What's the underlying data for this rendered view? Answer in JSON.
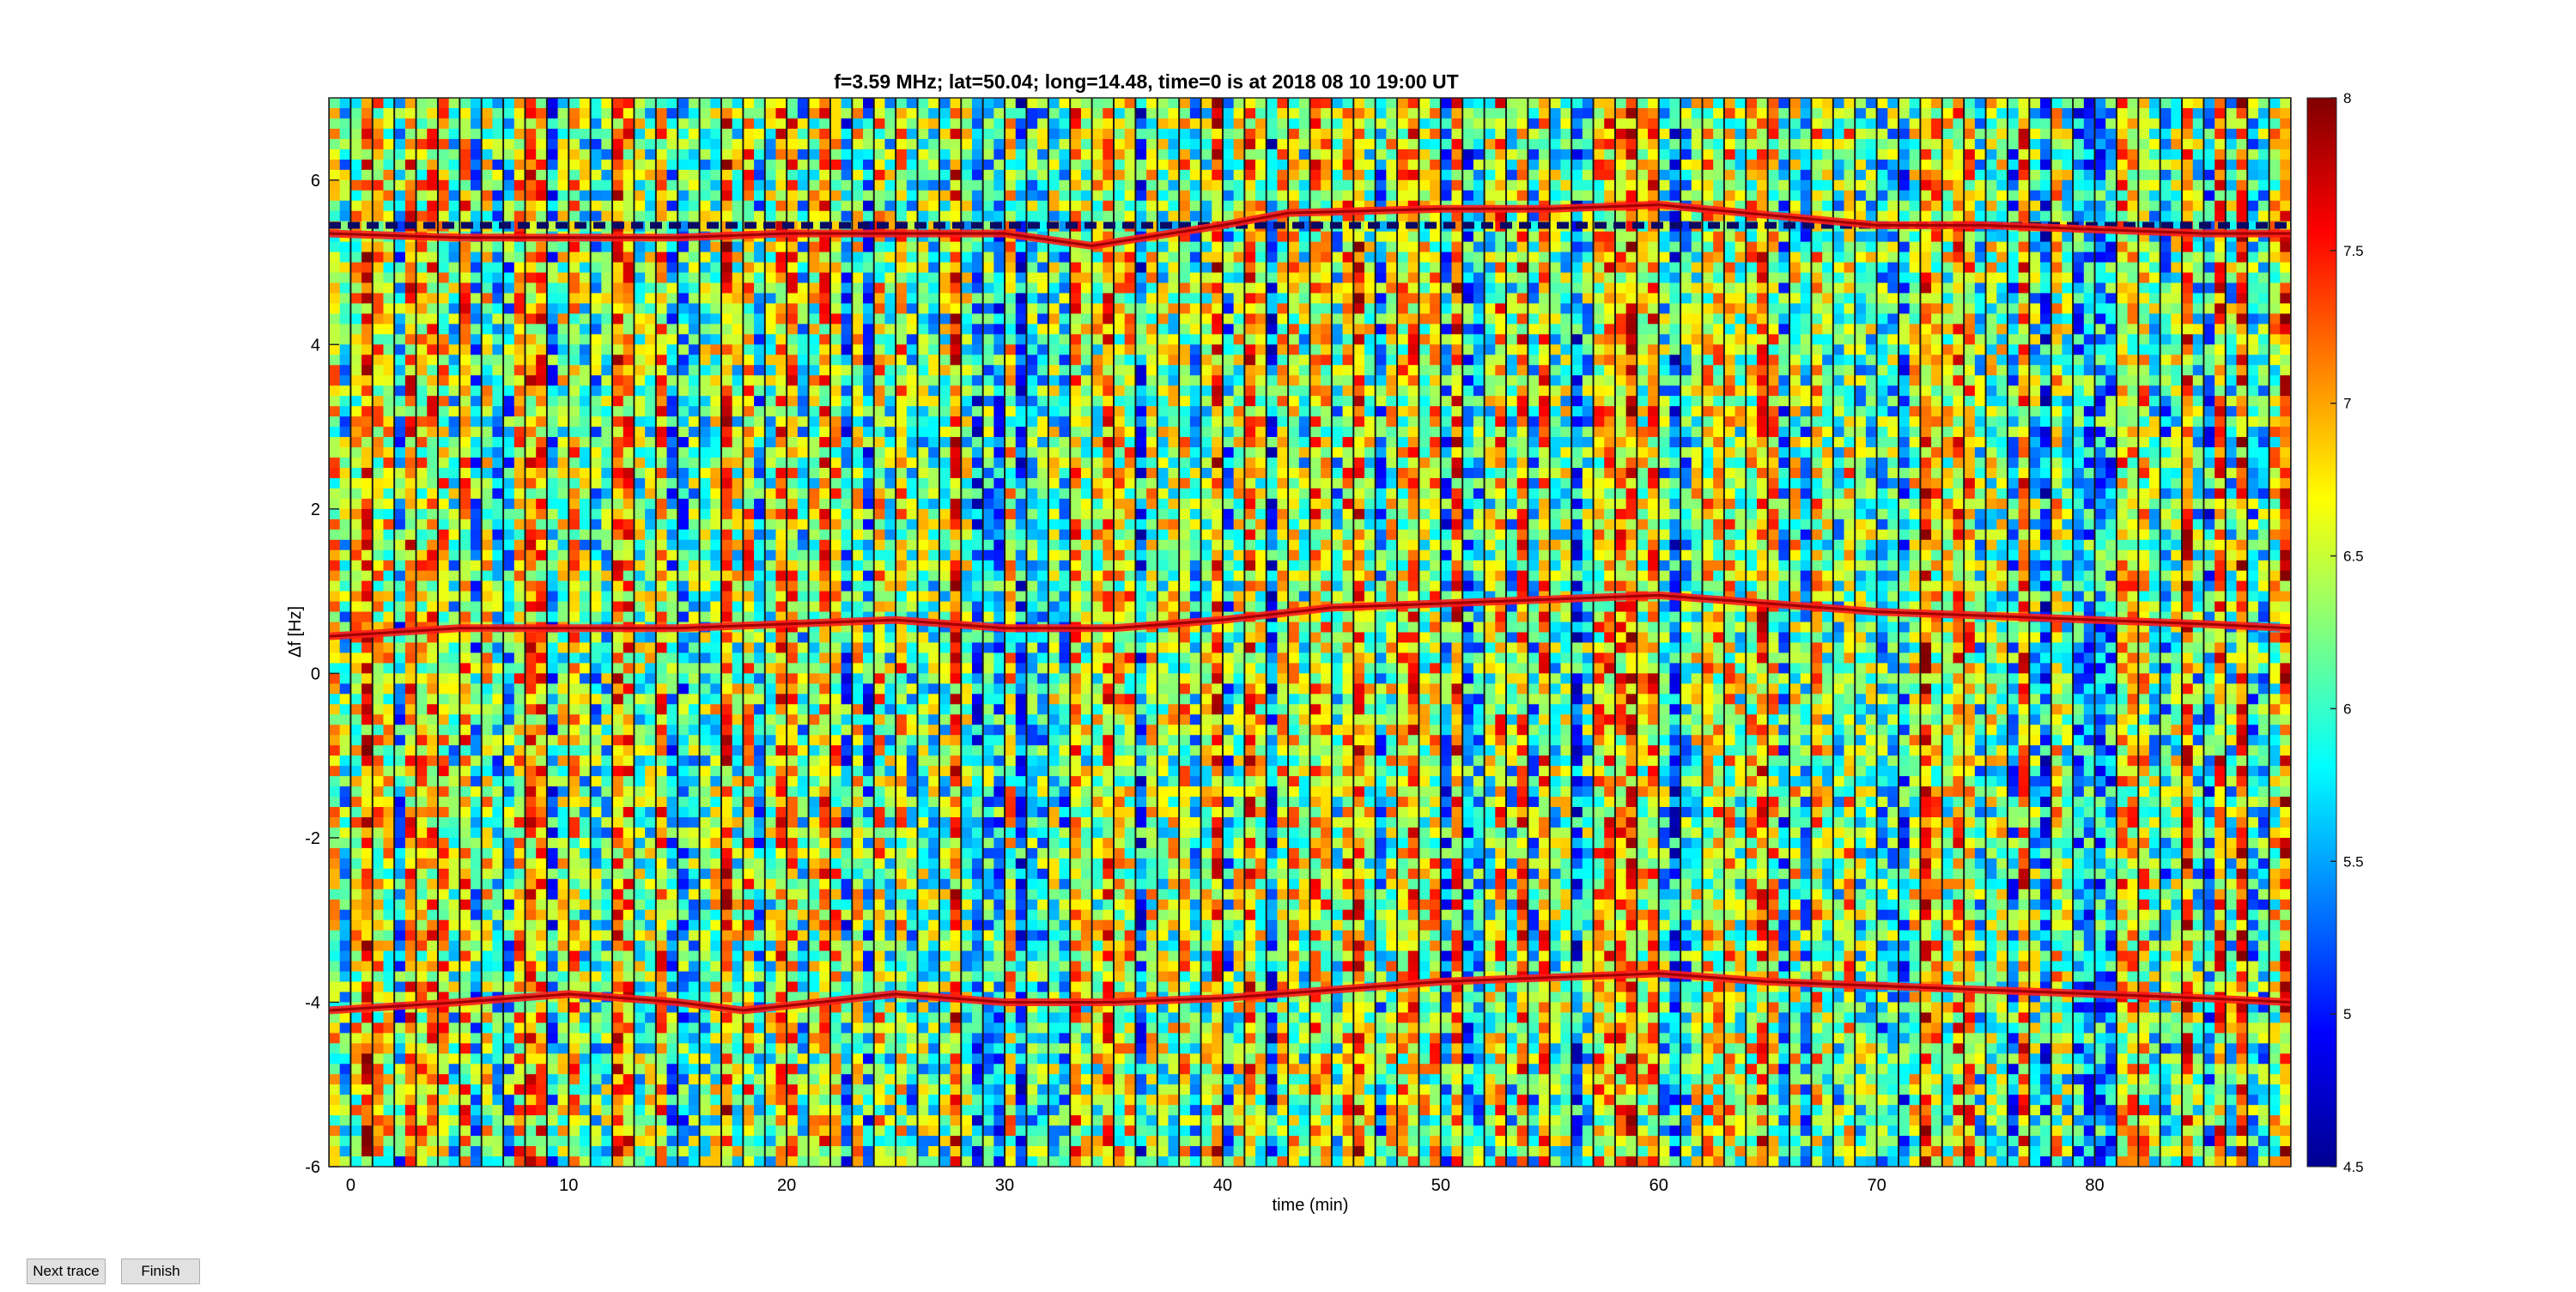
{
  "chart_data": {
    "type": "heatmap",
    "title": "f=3.59 MHz;  lat=50.04; long=14.48, time=0 is at 2018 08 10 19:00 UT",
    "xlabel": "time (min)",
    "ylabel": "Δf [Hz]",
    "xlim": [
      -1,
      89
    ],
    "ylim": [
      -6,
      7
    ],
    "xticks": [
      0,
      10,
      20,
      30,
      40,
      50,
      60,
      70,
      80
    ],
    "yticks": [
      -6,
      -4,
      -2,
      0,
      2,
      4,
      6
    ],
    "colorbar": {
      "min": 4.5,
      "max": 8,
      "ticks": [
        4.5,
        5,
        5.5,
        6,
        6.5,
        7,
        7.5,
        8
      ],
      "colormap": "jet"
    },
    "grid": false,
    "traces": [
      {
        "description": "upper red trace",
        "x": [
          -1,
          5,
          10,
          15,
          20,
          25,
          30,
          34,
          40,
          43,
          50,
          55,
          60,
          64,
          70,
          75,
          80,
          85,
          89
        ],
        "y": [
          5.35,
          5.3,
          5.3,
          5.3,
          5.35,
          5.35,
          5.35,
          5.2,
          5.45,
          5.6,
          5.65,
          5.65,
          5.7,
          5.6,
          5.45,
          5.45,
          5.4,
          5.35,
          5.35
        ]
      },
      {
        "description": "middle red trace",
        "x": [
          -1,
          5,
          10,
          15,
          20,
          25,
          30,
          35,
          40,
          45,
          50,
          55,
          60,
          65,
          70,
          75,
          80,
          85,
          89
        ],
        "y": [
          0.45,
          0.55,
          0.55,
          0.55,
          0.6,
          0.65,
          0.55,
          0.55,
          0.65,
          0.8,
          0.85,
          0.9,
          0.95,
          0.85,
          0.75,
          0.7,
          0.65,
          0.6,
          0.55
        ]
      },
      {
        "description": "lower red trace",
        "x": [
          -1,
          5,
          10,
          15,
          18,
          25,
          30,
          35,
          40,
          45,
          50,
          55,
          60,
          65,
          70,
          75,
          80,
          85,
          89
        ],
        "y": [
          -4.1,
          -4.0,
          -3.9,
          -4.0,
          -4.1,
          -3.9,
          -4.0,
          -4.0,
          -3.95,
          -3.85,
          -3.75,
          -3.7,
          -3.65,
          -3.75,
          -3.8,
          -3.85,
          -3.9,
          -3.95,
          -4.0
        ]
      }
    ],
    "dashed_line": {
      "y": 5.45,
      "color": "#0a0a64"
    },
    "vertical_lines_interval_min": 1
  },
  "controls": {
    "next_trace": "Next trace",
    "finish": "Finish"
  }
}
